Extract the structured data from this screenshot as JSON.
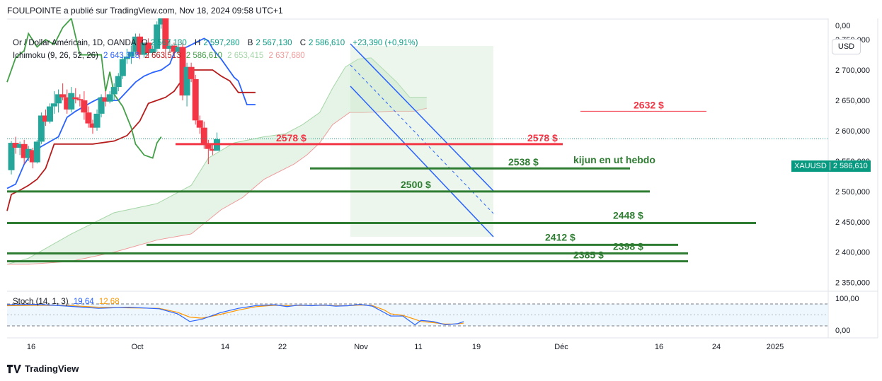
{
  "header": "FOULPOINTE a publié sur TradingView.com, Nov 18, 2024 09:58 UTC+1",
  "legend": {
    "title": "Or / Dollar Américain, 1D, OANDA",
    "o_label": "O",
    "o_val": "2 567,130",
    "h_label": "H",
    "h_val": "2 597,280",
    "b_label": "B",
    "b_val": "2 567,130",
    "c_label": "C",
    "c_val": "2 586,610",
    "change": "+23,390 (+0,91%)",
    "ichimoku_label": "Ichimoku (9, 26, 52, 26)",
    "ichimoku_values": [
      "2 643,318",
      "2 663,513",
      "2 586,610",
      "2 653,415",
      "2 637,680"
    ]
  },
  "stoch": {
    "label": "Stoch (14, 1, 3)",
    "k": "19,64",
    "d": "12,68"
  },
  "usd_button": "USD",
  "symbol_badge": {
    "symbol": "XAUUSD",
    "price": "2 586,610"
  },
  "footer": "TradingView",
  "colors": {
    "up": "#26a69a",
    "down": "#f23645",
    "tenkan": "#2962ff",
    "kijun": "#b71c1c",
    "chikou": "#43a047",
    "cloud": "#c8e6c9",
    "support": "#2e7d32",
    "resistance": "#f23645"
  },
  "chart_data": {
    "type": "candlestick",
    "symbol": "XAUUSD",
    "timeframe": "1D",
    "y_range": [
      2338,
      2785
    ],
    "y_ticks": [
      "2 750,000",
      "2 700,000",
      "2 650,000",
      "2 600,000",
      "2 550,000",
      "2 500,000",
      "2 450,000",
      "2 400,000",
      "2 350,000"
    ],
    "top_tick": "0,00",
    "x_ticks": [
      "16",
      "Oct",
      "14",
      "22",
      "Nov",
      "11",
      "19",
      "Déc",
      "16",
      "24",
      "2025"
    ],
    "candles": [
      [
        2535,
        2583,
        2528,
        2580
      ],
      [
        2580,
        2590,
        2562,
        2572
      ],
      [
        2572,
        2582,
        2560,
        2578
      ],
      [
        2578,
        2585,
        2545,
        2555
      ],
      [
        2555,
        2575,
        2550,
        2570
      ],
      [
        2568,
        2572,
        2538,
        2548
      ],
      [
        2548,
        2585,
        2546,
        2582
      ],
      [
        2582,
        2630,
        2578,
        2625
      ],
      [
        2625,
        2635,
        2608,
        2615
      ],
      [
        2615,
        2645,
        2612,
        2640
      ],
      [
        2640,
        2665,
        2628,
        2645
      ],
      [
        2645,
        2668,
        2630,
        2660
      ],
      [
        2660,
        2678,
        2650,
        2655
      ],
      [
        2655,
        2668,
        2628,
        2635
      ],
      [
        2635,
        2672,
        2630,
        2662
      ],
      [
        2655,
        2670,
        2645,
        2652
      ],
      [
        2652,
        2660,
        2640,
        2650
      ],
      [
        2650,
        2665,
        2618,
        2630
      ],
      [
        2630,
        2640,
        2605,
        2612
      ],
      [
        2612,
        2618,
        2595,
        2605
      ],
      [
        2605,
        2635,
        2600,
        2628
      ],
      [
        2628,
        2660,
        2622,
        2655
      ],
      [
        2655,
        2665,
        2640,
        2648
      ],
      [
        2648,
        2665,
        2645,
        2660
      ],
      [
        2660,
        2678,
        2650,
        2672
      ],
      [
        2672,
        2695,
        2665,
        2690
      ],
      [
        2690,
        2722,
        2685,
        2718
      ],
      [
        2718,
        2735,
        2710,
        2722
      ],
      [
        2722,
        2740,
        2710,
        2730
      ],
      [
        2730,
        2760,
        2725,
        2755
      ],
      [
        2755,
        2760,
        2718,
        2725
      ],
      [
        2725,
        2745,
        2720,
        2745
      ],
      [
        2745,
        2752,
        2720,
        2728
      ],
      [
        2728,
        2740,
        2725,
        2735
      ],
      [
        2735,
        2780,
        2730,
        2775
      ],
      [
        2775,
        2790,
        2768,
        2785
      ],
      [
        2785,
        2790,
        2720,
        2735
      ],
      [
        2735,
        2750,
        2728,
        2740
      ],
      [
        2740,
        2745,
        2725,
        2730
      ],
      [
        2730,
        2750,
        2725,
        2738
      ],
      [
        2738,
        2745,
        2650,
        2658
      ],
      [
        2658,
        2712,
        2640,
        2705
      ],
      [
        2705,
        2712,
        2680,
        2685
      ],
      [
        2685,
        2692,
        2610,
        2617
      ],
      [
        2617,
        2625,
        2595,
        2605
      ],
      [
        2605,
        2615,
        2570,
        2578
      ],
      [
        2578,
        2585,
        2545,
        2570
      ],
      [
        2570,
        2578,
        2560,
        2567
      ],
      [
        2567,
        2597,
        2567,
        2586
      ]
    ],
    "series": [
      {
        "name": "Ichimoku",
        "role": "tenkan",
        "values": [
          [
            0,
            2505
          ],
          [
            4,
            2512
          ],
          [
            8,
            2545
          ],
          [
            12,
            2565
          ],
          [
            16,
            2574
          ],
          [
            20,
            2582
          ],
          [
            24,
            2590
          ],
          [
            28,
            2622
          ],
          [
            32,
            2632
          ],
          [
            36,
            2640
          ],
          [
            40,
            2648
          ],
          [
            44,
            2655
          ],
          [
            48,
            2650
          ],
          [
            52,
            2650
          ],
          [
            56,
            2665
          ],
          [
            60,
            2680
          ],
          [
            64,
            2690
          ],
          [
            68,
            2696
          ],
          [
            72,
            2700
          ],
          [
            76,
            2710
          ],
          [
            78,
            2728
          ],
          [
            80,
            2733
          ],
          [
            84,
            2738
          ],
          [
            88,
            2745
          ],
          [
            92,
            2752
          ],
          [
            94,
            2748
          ],
          [
            96,
            2735
          ],
          [
            100,
            2718
          ],
          [
            104,
            2698
          ],
          [
            106,
            2688
          ],
          [
            108,
            2682
          ],
          [
            112,
            2643
          ],
          [
            116,
            2643
          ]
        ]
      },
      {
        "name": "Ichimoku",
        "role": "kijun",
        "values": [
          [
            0,
            2468
          ],
          [
            2,
            2495
          ],
          [
            6,
            2502
          ],
          [
            10,
            2510
          ],
          [
            14,
            2520
          ],
          [
            18,
            2538
          ],
          [
            22,
            2578
          ],
          [
            30,
            2578
          ],
          [
            40,
            2578
          ],
          [
            50,
            2583
          ],
          [
            56,
            2592
          ],
          [
            62,
            2616
          ],
          [
            66,
            2645
          ],
          [
            70,
            2650
          ],
          [
            74,
            2655
          ],
          [
            78,
            2665
          ],
          [
            82,
            2685
          ],
          [
            86,
            2700
          ],
          [
            96,
            2700
          ],
          [
            100,
            2690
          ],
          [
            104,
            2682
          ],
          [
            108,
            2663
          ],
          [
            116,
            2663
          ]
        ]
      },
      {
        "name": "Ichimoku",
        "role": "chikou",
        "values": [
          [
            0,
            2680
          ],
          [
            4,
            2720
          ],
          [
            8,
            2732
          ],
          [
            10,
            2760
          ],
          [
            14,
            2738
          ],
          [
            18,
            2750
          ],
          [
            22,
            2742
          ],
          [
            26,
            2770
          ],
          [
            30,
            2785
          ],
          [
            34,
            2725
          ],
          [
            38,
            2725
          ],
          [
            42,
            2725
          ],
          [
            44,
            2725
          ],
          [
            46,
            2665
          ],
          [
            48,
            2697
          ],
          [
            50,
            2660
          ],
          [
            54,
            2640
          ],
          [
            58,
            2605
          ],
          [
            60,
            2578
          ],
          [
            64,
            2560
          ],
          [
            68,
            2555
          ],
          [
            70,
            2580
          ],
          [
            72,
            2590
          ]
        ]
      }
    ],
    "cloud_upper": [
      [
        0,
        2380
      ],
      [
        10,
        2390
      ],
      [
        30,
        2430
      ],
      [
        50,
        2465
      ],
      [
        70,
        2480
      ],
      [
        86,
        2510
      ],
      [
        94,
        2555
      ],
      [
        106,
        2580
      ],
      [
        120,
        2590
      ],
      [
        130,
        2595
      ],
      [
        138,
        2610
      ],
      [
        146,
        2630
      ],
      [
        152,
        2670
      ],
      [
        158,
        2705
      ],
      [
        164,
        2718
      ],
      [
        170,
        2720
      ],
      [
        176,
        2700
      ],
      [
        182,
        2680
      ],
      [
        188,
        2655
      ],
      [
        196,
        2655
      ]
    ],
    "cloud_lower": [
      [
        0,
        2380
      ],
      [
        10,
        2380
      ],
      [
        30,
        2385
      ],
      [
        50,
        2400
      ],
      [
        70,
        2420
      ],
      [
        86,
        2430
      ],
      [
        100,
        2470
      ],
      [
        110,
        2490
      ],
      [
        120,
        2520
      ],
      [
        134,
        2545
      ],
      [
        140,
        2560
      ],
      [
        146,
        2580
      ],
      [
        152,
        2610
      ],
      [
        160,
        2630
      ],
      [
        166,
        2630
      ],
      [
        180,
        2632
      ],
      [
        190,
        2632
      ],
      [
        196,
        2637
      ]
    ],
    "levels": [
      {
        "label": "2632 $",
        "value": 2632,
        "kind": "resistance"
      },
      {
        "label": "2578 $",
        "value": 2578,
        "kind": "resistance"
      },
      {
        "label": "2578 $",
        "value": 2578,
        "kind": "resistance"
      },
      {
        "label": "2538 $",
        "value": 2538,
        "kind": "support"
      },
      {
        "label": "2500 $",
        "value": 2500,
        "kind": "support"
      },
      {
        "label": "2448 $",
        "value": 2448,
        "kind": "support"
      },
      {
        "label": "2412 $",
        "value": 2412,
        "kind": "support"
      },
      {
        "label": "2398 $",
        "value": 2398,
        "kind": "support"
      },
      {
        "label": "2385 $",
        "value": 2385,
        "kind": "support"
      }
    ],
    "annotation": "kijun en ut hebdo",
    "stoch": {
      "ticks": [
        "100,00",
        "0,00"
      ],
      "k": [
        [
          0,
          96
        ],
        [
          10,
          98
        ],
        [
          20,
          90
        ],
        [
          30,
          80
        ],
        [
          40,
          85
        ],
        [
          50,
          78
        ],
        [
          56,
          55
        ],
        [
          60,
          20
        ],
        [
          64,
          30
        ],
        [
          70,
          60
        ],
        [
          76,
          80
        ],
        [
          82,
          93
        ],
        [
          88,
          96
        ],
        [
          92,
          88
        ],
        [
          96,
          95
        ],
        [
          100,
          92
        ],
        [
          104,
          95
        ],
        [
          108,
          90
        ],
        [
          112,
          92
        ],
        [
          116,
          98
        ],
        [
          120,
          90
        ],
        [
          124,
          60
        ],
        [
          126,
          45
        ],
        [
          130,
          45
        ],
        [
          134,
          5
        ],
        [
          136,
          25
        ],
        [
          140,
          20
        ],
        [
          144,
          5
        ],
        [
          148,
          10
        ],
        [
          150,
          19.64
        ]
      ],
      "d": [
        [
          0,
          92
        ],
        [
          10,
          94
        ],
        [
          20,
          93
        ],
        [
          30,
          85
        ],
        [
          40,
          82
        ],
        [
          50,
          80
        ],
        [
          56,
          62
        ],
        [
          60,
          40
        ],
        [
          64,
          35
        ],
        [
          70,
          52
        ],
        [
          76,
          72
        ],
        [
          82,
          88
        ],
        [
          88,
          94
        ],
        [
          92,
          92
        ],
        [
          96,
          93
        ],
        [
          100,
          93
        ],
        [
          104,
          94
        ],
        [
          108,
          92
        ],
        [
          112,
          92
        ],
        [
          116,
          95
        ],
        [
          120,
          93
        ],
        [
          124,
          72
        ],
        [
          126,
          55
        ],
        [
          130,
          48
        ],
        [
          134,
          30
        ],
        [
          136,
          20
        ],
        [
          140,
          15
        ],
        [
          144,
          8
        ],
        [
          148,
          9
        ],
        [
          150,
          12.68
        ]
      ]
    }
  }
}
